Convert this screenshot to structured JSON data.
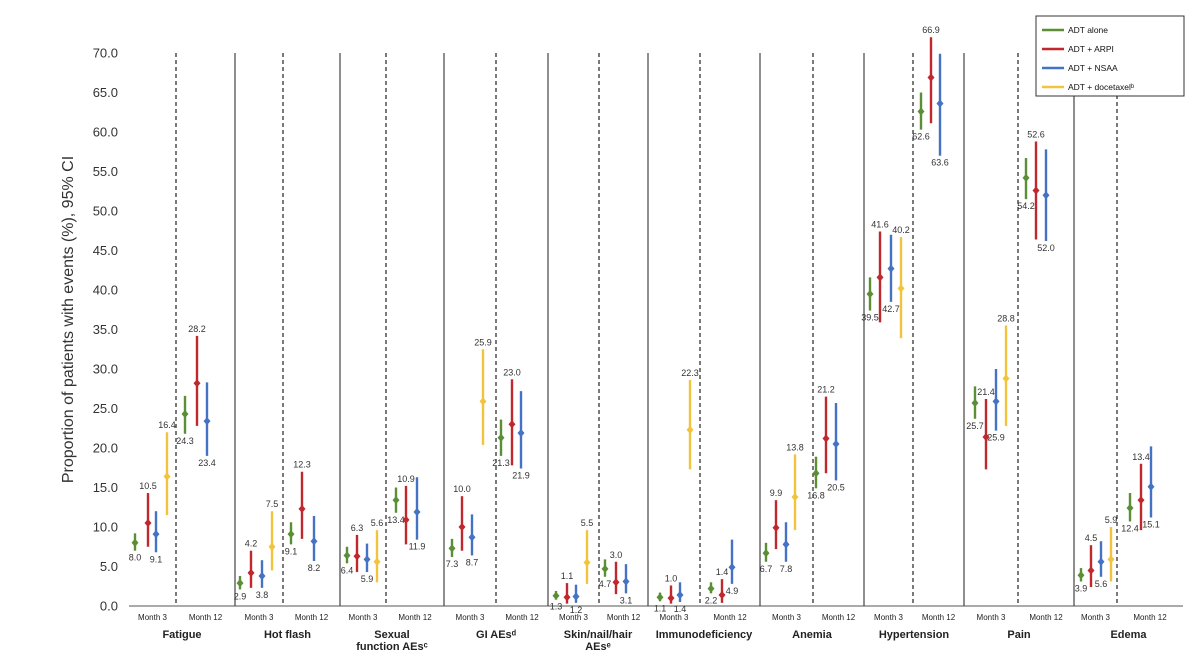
{
  "chart_data": {
    "type": "scatter",
    "ylabel": "Proportion of patients with events (%), 95% CI",
    "ylim": [
      0,
      70
    ],
    "yticks": [
      "0.0",
      "5.0",
      "10.0",
      "15.0",
      "20.0",
      "25.0",
      "30.0",
      "35.0",
      "40.0",
      "45.0",
      "50.0",
      "55.0",
      "60.0",
      "65.0",
      "70.0"
    ],
    "grid": false,
    "legend_position": "top-right",
    "series": [
      {
        "name": "ADT alone",
        "color": "#5a8f35"
      },
      {
        "name": "ADT + ARPI",
        "color": "#c0282d"
      },
      {
        "name": "ADT + NSAA",
        "color": "#4472c4"
      },
      {
        "name": "ADT + docetaxelᵇ",
        "color": "#f2c33c"
      }
    ],
    "time_labels": [
      "Month 3",
      "Month 12"
    ],
    "categories": [
      {
        "label": [
          "Fatigue"
        ],
        "groups": [
          {
            "points": [
              [
                8.0,
                7.0,
                9.2
              ],
              [
                10.5,
                7.5,
                14.3
              ],
              [
                9.1,
                6.8,
                12.0
              ],
              [
                16.4,
                11.5,
                22.0
              ]
            ],
            "labels": [
              "8.0",
              "10.5",
              "9.1",
              "16.4"
            ]
          },
          {
            "points": [
              [
                24.3,
                21.8,
                26.6
              ],
              [
                28.2,
                22.8,
                34.2
              ],
              [
                23.4,
                19.0,
                28.3
              ]
            ],
            "labels": [
              "24.3",
              "28.2",
              "23.4"
            ]
          }
        ]
      },
      {
        "label": [
          "Hot flash"
        ],
        "groups": [
          {
            "points": [
              [
                2.9,
                2.1,
                3.8
              ],
              [
                4.2,
                2.3,
                7.0
              ],
              [
                3.8,
                2.3,
                5.8
              ],
              [
                7.5,
                4.5,
                12.0
              ]
            ],
            "labels": [
              "2.9",
              "4.2",
              "3.8",
              "7.5"
            ]
          },
          {
            "points": [
              [
                9.1,
                7.8,
                10.6
              ],
              [
                12.3,
                8.5,
                17.0
              ],
              [
                8.2,
                5.7,
                11.4
              ]
            ],
            "labels": [
              "9.1",
              "12.3",
              "8.2"
            ]
          }
        ]
      },
      {
        "label": [
          "Sexual",
          "function AEsᶜ"
        ],
        "groups": [
          {
            "points": [
              [
                6.4,
                5.4,
                7.5
              ],
              [
                6.3,
                4.3,
                9.0
              ],
              [
                5.9,
                4.3,
                7.9
              ],
              [
                5.6,
                3.0,
                9.6
              ]
            ],
            "labels": [
              "6.4",
              "6.3",
              "5.9",
              "5.6"
            ]
          },
          {
            "points": [
              [
                13.4,
                11.8,
                15.0
              ],
              [
                10.9,
                7.8,
                15.2
              ],
              [
                11.9,
                8.4,
                16.3
              ]
            ],
            "labels": [
              "13.4",
              "10.9",
              "11.9"
            ]
          }
        ]
      },
      {
        "label": [
          "GI AEsᵈ"
        ],
        "groups": [
          {
            "points": [
              [
                7.3,
                6.2,
                8.5
              ],
              [
                10.0,
                7.0,
                13.9
              ],
              [
                8.7,
                6.4,
                11.6
              ]
            ],
            "labels": [
              "7.3",
              "10.0",
              "8.7"
            ]
          },
          {
            "points": [
              [
                25.9,
                20.4,
                32.5
              ]
            ],
            "labels": [
              "25.9"
            ]
          },
          {
            "points": [
              [
                21.3,
                19.0,
                23.6
              ],
              [
                23.0,
                17.8,
                28.7
              ],
              [
                21.9,
                17.4,
                27.2
              ]
            ],
            "labels": [
              "21.3",
              "23.0",
              "21.9"
            ]
          }
        ]
      },
      {
        "label": [
          "Skin/nail/hair",
          "AEsᵉ"
        ],
        "groups": [
          {
            "points": [
              [
                1.3,
                0.8,
                1.9
              ],
              [
                1.1,
                0.3,
                2.9
              ],
              [
                1.2,
                0.4,
                2.7
              ],
              [
                5.5,
                2.8,
                9.6
              ]
            ],
            "labels": [
              "1.3",
              "1.1",
              "1.2",
              "5.5"
            ]
          },
          {
            "points": [
              [
                4.7,
                3.7,
                5.9
              ],
              [
                3.0,
                1.5,
                5.6
              ],
              [
                3.1,
                1.6,
                5.3
              ]
            ],
            "labels": [
              "4.7",
              "3.0",
              "3.1"
            ]
          }
        ]
      },
      {
        "label": [
          "Immunodeficiency"
        ],
        "groups": [
          {
            "points": [
              [
                1.1,
                0.6,
                1.7
              ],
              [
                1.0,
                0.3,
                2.6
              ],
              [
                1.4,
                0.5,
                3.0
              ]
            ],
            "labels": [
              "1.1",
              "1.0",
              "1.4"
            ]
          },
          {
            "points": [
              [
                22.3,
                17.3,
                28.6
              ]
            ],
            "labels": [
              "22.3"
            ]
          },
          {
            "points": [
              [
                2.2,
                1.6,
                3.0
              ],
              [
                1.4,
                0.4,
                3.4
              ],
              [
                4.9,
                2.8,
                8.4
              ]
            ],
            "labels": [
              "2.2",
              "1.4",
              "4.9"
            ]
          }
        ]
      },
      {
        "label": [
          "Anemia"
        ],
        "groups": [
          {
            "points": [
              [
                6.7,
                5.6,
                8.0
              ],
              [
                9.9,
                7.2,
                13.4
              ],
              [
                7.8,
                5.6,
                10.6
              ],
              [
                13.8,
                9.6,
                19.2
              ]
            ],
            "labels": [
              "6.7",
              "9.9",
              "7.8",
              "13.8"
            ]
          },
          {
            "points": [
              [
                16.8,
                14.9,
                18.9
              ],
              [
                21.2,
                16.8,
                26.5
              ],
              [
                20.5,
                15.9,
                25.7
              ]
            ],
            "labels": [
              "16.8",
              "21.2",
              "20.5"
            ]
          }
        ]
      },
      {
        "label": [
          "Hypertension"
        ],
        "groups": [
          {
            "points": [
              [
                39.5,
                37.4,
                41.6
              ],
              [
                41.6,
                35.9,
                47.4
              ],
              [
                42.7,
                38.5,
                47.0
              ],
              [
                40.2,
                33.9,
                46.7
              ]
            ],
            "labels": [
              "39.5",
              "41.6",
              "42.7",
              "40.2"
            ]
          },
          {
            "points": [
              [
                62.6,
                60.3,
                65.0
              ],
              [
                66.9,
                61.1,
                72.0
              ],
              [
                63.6,
                57.0,
                69.9
              ]
            ],
            "labels": [
              "62.6",
              "66.9",
              "63.6"
            ]
          }
        ]
      },
      {
        "label": [
          "Pain"
        ],
        "groups": [
          {
            "points": [
              [
                25.7,
                23.7,
                27.8
              ],
              [
                21.4,
                17.3,
                26.2
              ],
              [
                25.9,
                22.2,
                30.0
              ],
              [
                28.8,
                22.8,
                35.5
              ]
            ],
            "labels": [
              "25.7",
              "21.4",
              "25.9",
              "28.8"
            ]
          },
          {
            "points": [
              [
                54.2,
                51.5,
                56.7
              ],
              [
                52.6,
                46.4,
                58.8
              ],
              [
                52.0,
                46.2,
                57.8
              ]
            ],
            "labels": [
              "54.2",
              "52.6",
              "52.0"
            ]
          }
        ]
      },
      {
        "label": [
          "Edema"
        ],
        "groups": [
          {
            "points": [
              [
                3.9,
                3.1,
                4.8
              ],
              [
                4.5,
                2.4,
                7.7
              ],
              [
                5.6,
                3.7,
                8.2
              ],
              [
                5.9,
                3.1,
                10.0
              ]
            ],
            "labels": [
              "3.9",
              "4.5",
              "5.6",
              "5.9"
            ]
          },
          {
            "points": [
              [
                12.4,
                10.7,
                14.3
              ],
              [
                13.4,
                9.6,
                18.0
              ],
              [
                15.1,
                11.2,
                20.2
              ]
            ],
            "labels": [
              "12.4",
              "13.4",
              "15.1"
            ]
          }
        ]
      }
    ]
  }
}
